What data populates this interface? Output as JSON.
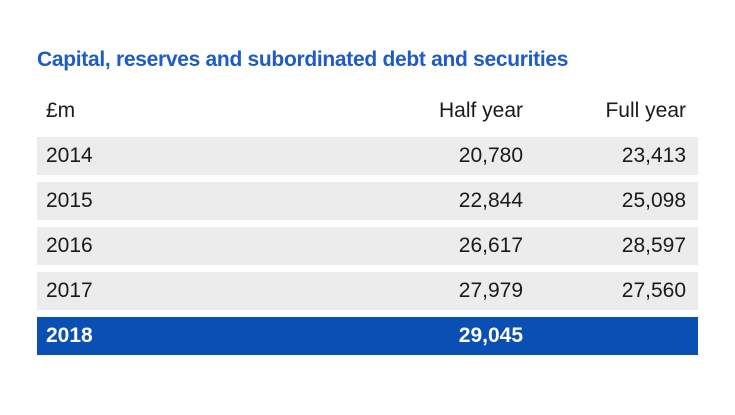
{
  "title": "Capital, reserves and subordinated debt and securities",
  "colors": {
    "title": "#1e5bc6",
    "row_bg": "#ececec",
    "highlight_bg": "#0a4fb3"
  },
  "chart_data": {
    "type": "table",
    "title": "Capital, reserves and subordinated debt and securities",
    "columns": [
      "£m",
      "Half year",
      "Full year"
    ],
    "rows": [
      [
        "2014",
        "20,780",
        "23,413"
      ],
      [
        "2015",
        "22,844",
        "25,098"
      ],
      [
        "2016",
        "26,617",
        "28,597"
      ],
      [
        "2017",
        "27,979",
        "27,560"
      ],
      [
        "2018",
        "29,045",
        ""
      ]
    ],
    "highlight_row": 4
  }
}
